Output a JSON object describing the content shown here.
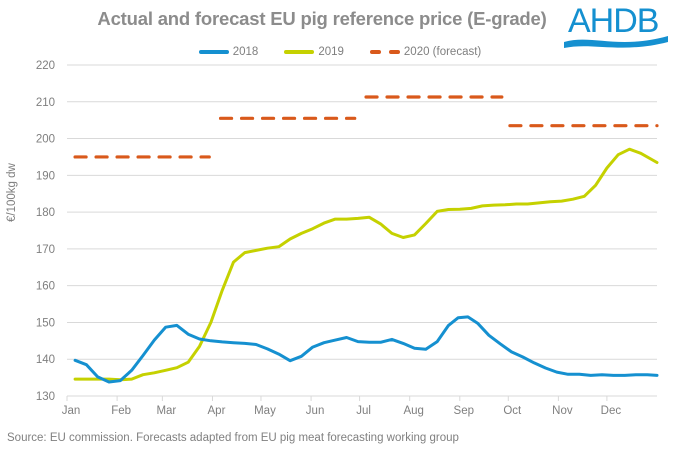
{
  "header": {
    "title": "Actual and forecast EU pig reference price (E-grade)",
    "logo_text": "AHDB"
  },
  "footer": {
    "source": "Source: EU commission. Forecasts adapted from EU pig meat forecasting working group"
  },
  "colors": {
    "series_2018": "#1590d0",
    "series_2019": "#c5d100",
    "series_2020": "#d9591b",
    "logo": "#1590d0",
    "gridline": "#d9d9d9",
    "text": "#7f7f7f"
  },
  "chart_data": {
    "type": "line",
    "title": "Actual and forecast EU pig reference price (E-grade)",
    "xlabel": "",
    "ylabel": "€/100kg dw",
    "ylim": [
      130,
      220
    ],
    "yticks": [
      130,
      140,
      150,
      160,
      170,
      180,
      190,
      200,
      210,
      220
    ],
    "xlim_days": [
      0,
      365
    ],
    "x_unit": "day of year",
    "x_tick_labels": [
      "Jan",
      "Feb",
      "Mar",
      "Apr",
      "May",
      "Jun",
      "Jul",
      "Aug",
      "Sep",
      "Oct",
      "Nov",
      "Dec"
    ],
    "x_tick_days": [
      0,
      31,
      59,
      90,
      120,
      151,
      181,
      212,
      243,
      273,
      304,
      334
    ],
    "grid": true,
    "legend_position": "top",
    "series": [
      {
        "name": "2018",
        "style": "solid",
        "points": [
          [
            5,
            139.7
          ],
          [
            12,
            138.5
          ],
          [
            19,
            135.2
          ],
          [
            26,
            133.8
          ],
          [
            33,
            134.2
          ],
          [
            40,
            137.0
          ],
          [
            47,
            141.0
          ],
          [
            54,
            145.2
          ],
          [
            61,
            148.7
          ],
          [
            68,
            149.2
          ],
          [
            75,
            146.8
          ],
          [
            82,
            145.5
          ],
          [
            89,
            145.0
          ],
          [
            96,
            144.7
          ],
          [
            103,
            144.5
          ],
          [
            110,
            144.3
          ],
          [
            117,
            144.0
          ],
          [
            124,
            142.8
          ],
          [
            131,
            141.4
          ],
          [
            138,
            139.6
          ],
          [
            145,
            140.8
          ],
          [
            152,
            143.3
          ],
          [
            159,
            144.5
          ],
          [
            166,
            145.2
          ],
          [
            173,
            145.9
          ],
          [
            180,
            144.8
          ],
          [
            187,
            144.6
          ],
          [
            194,
            144.6
          ],
          [
            201,
            145.4
          ],
          [
            208,
            144.3
          ],
          [
            215,
            143.0
          ],
          [
            222,
            142.7
          ],
          [
            229,
            144.8
          ],
          [
            236,
            149.2
          ],
          [
            242,
            151.3
          ],
          [
            248,
            151.5
          ],
          [
            254,
            149.8
          ],
          [
            261,
            146.5
          ],
          [
            268,
            144.2
          ],
          [
            275,
            142.0
          ],
          [
            282,
            140.6
          ],
          [
            289,
            139.0
          ],
          [
            296,
            137.6
          ],
          [
            303,
            136.5
          ],
          [
            310,
            135.9
          ],
          [
            317,
            135.9
          ],
          [
            324,
            135.6
          ],
          [
            331,
            135.8
          ],
          [
            338,
            135.6
          ],
          [
            345,
            135.6
          ],
          [
            352,
            135.8
          ],
          [
            359,
            135.8
          ],
          [
            365,
            135.6
          ]
        ]
      },
      {
        "name": "2019",
        "style": "solid",
        "points": [
          [
            5,
            134.6
          ],
          [
            12,
            134.6
          ],
          [
            19,
            134.6
          ],
          [
            26,
            134.6
          ],
          [
            33,
            134.4
          ],
          [
            40,
            134.6
          ],
          [
            47,
            135.8
          ],
          [
            54,
            136.3
          ],
          [
            61,
            137.0
          ],
          [
            68,
            137.7
          ],
          [
            75,
            139.2
          ],
          [
            82,
            143.5
          ],
          [
            89,
            150.0
          ],
          [
            96,
            158.7
          ],
          [
            103,
            166.4
          ],
          [
            110,
            169.0
          ],
          [
            117,
            169.6
          ],
          [
            124,
            170.2
          ],
          [
            131,
            170.6
          ],
          [
            138,
            172.7
          ],
          [
            145,
            174.2
          ],
          [
            152,
            175.5
          ],
          [
            159,
            177.0
          ],
          [
            166,
            178.1
          ],
          [
            173,
            178.1
          ],
          [
            180,
            178.3
          ],
          [
            187,
            178.6
          ],
          [
            194,
            176.8
          ],
          [
            201,
            174.2
          ],
          [
            208,
            173.1
          ],
          [
            215,
            173.8
          ],
          [
            222,
            176.9
          ],
          [
            229,
            180.2
          ],
          [
            236,
            180.7
          ],
          [
            243,
            180.8
          ],
          [
            250,
            181.0
          ],
          [
            257,
            181.7
          ],
          [
            264,
            181.9
          ],
          [
            271,
            182.0
          ],
          [
            278,
            182.2
          ],
          [
            285,
            182.2
          ],
          [
            292,
            182.5
          ],
          [
            299,
            182.8
          ],
          [
            306,
            183.0
          ],
          [
            313,
            183.5
          ],
          [
            320,
            184.3
          ],
          [
            327,
            187.3
          ],
          [
            334,
            192.0
          ],
          [
            341,
            195.6
          ],
          [
            348,
            197.1
          ],
          [
            355,
            196.0
          ],
          [
            365,
            193.5
          ]
        ]
      },
      {
        "name": "2020 (forecast)",
        "style": "dashed",
        "segments": [
          {
            "quarter": "Q1",
            "from_day": 5,
            "to_day": 88,
            "value": 195.0
          },
          {
            "quarter": "Q2",
            "from_day": 95,
            "to_day": 178,
            "value": 205.5
          },
          {
            "quarter": "Q3",
            "from_day": 185,
            "to_day": 269,
            "value": 211.3
          },
          {
            "quarter": "Q4",
            "from_day": 274,
            "to_day": 365,
            "value": 203.5
          }
        ]
      }
    ]
  }
}
